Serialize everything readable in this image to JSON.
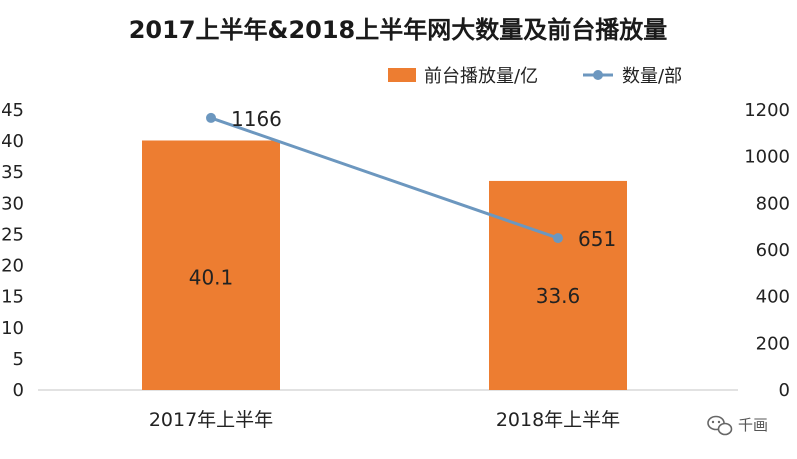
{
  "chart_data": {
    "type": "bar",
    "title": "2017上半年&2018上半年网大数量及前台播放量",
    "categories": [
      "2017年上半年",
      "2018年上半年"
    ],
    "series": [
      {
        "name": "前台播放量/亿",
        "type": "bar",
        "axis": "left",
        "values": [
          40.1,
          33.6
        ],
        "labels": [
          "40.1",
          "33.6"
        ],
        "color": "#ED7D31"
      },
      {
        "name": "数量/部",
        "type": "line",
        "axis": "right",
        "values": [
          1166,
          651
        ],
        "labels": [
          "1166",
          "651"
        ],
        "color": "#6C97BF"
      }
    ],
    "y_left": {
      "min": 0,
      "max": 45,
      "ticks": [
        "0",
        "5",
        "10",
        "15",
        "20",
        "25",
        "30",
        "35",
        "40",
        "45"
      ]
    },
    "y_right": {
      "min": 0,
      "max": 1200,
      "ticks": [
        "0",
        "200",
        "400",
        "600",
        "800",
        "1000",
        "1200"
      ]
    },
    "grid": false,
    "legend_position": "top-right"
  },
  "watermark": {
    "text": "千画",
    "icon": "wechat-icon"
  }
}
